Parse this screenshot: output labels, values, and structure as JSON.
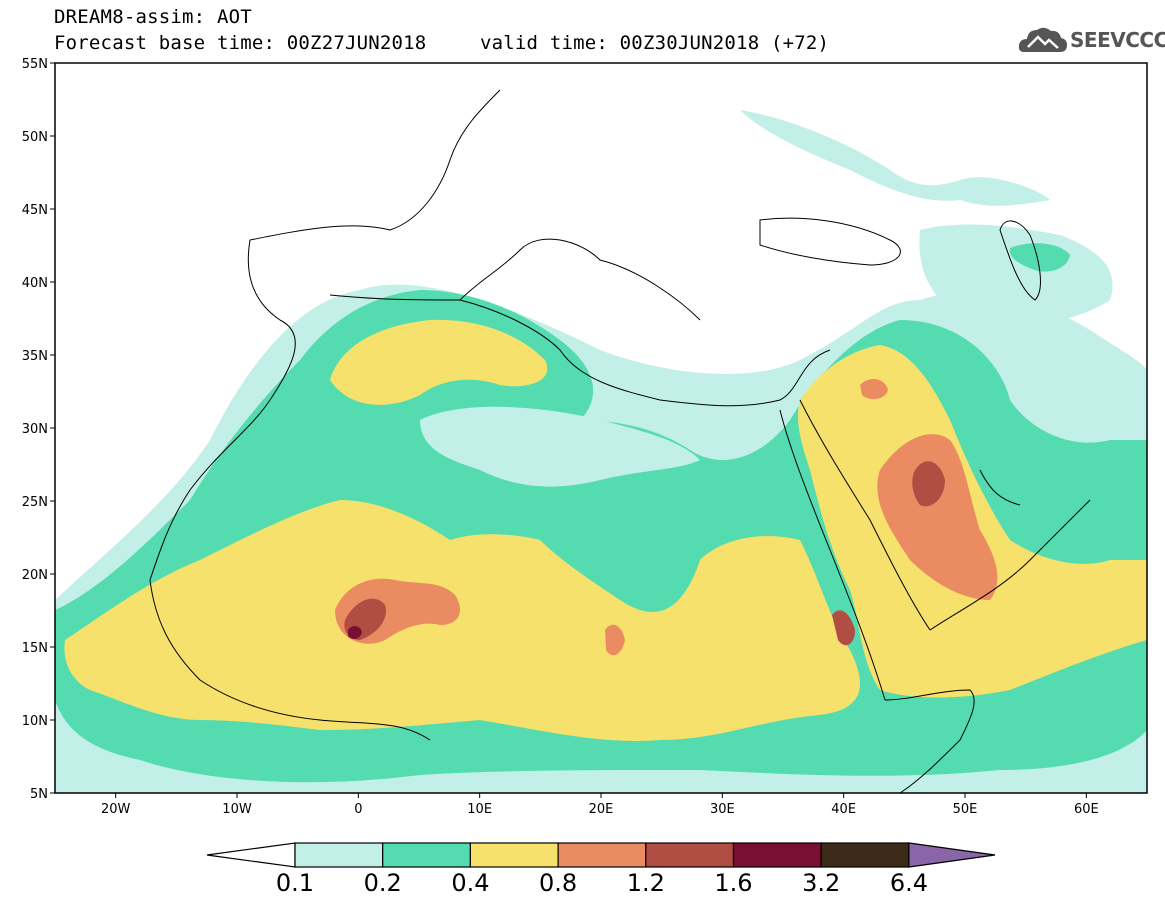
{
  "header": {
    "title": "DREAM8-assim: AOT",
    "base_time": "Forecast base time: 00Z27JUN2018",
    "valid_time": "valid time: 00Z30JUN2018 (+72)"
  },
  "logo": {
    "text": "SEEVCCC",
    "icon": "cloud-icon"
  },
  "map": {
    "lon_range": [
      -25,
      65
    ],
    "lat_range": [
      5,
      55
    ],
    "lat_ticks": [
      {
        "value": 55,
        "label": "55N"
      },
      {
        "value": 50,
        "label": "50N"
      },
      {
        "value": 45,
        "label": "45N"
      },
      {
        "value": 40,
        "label": "40N"
      },
      {
        "value": 35,
        "label": "35N"
      },
      {
        "value": 30,
        "label": "30N"
      },
      {
        "value": 25,
        "label": "25N"
      },
      {
        "value": 20,
        "label": "20N"
      },
      {
        "value": 15,
        "label": "15N"
      },
      {
        "value": 10,
        "label": "10N"
      },
      {
        "value": 5,
        "label": "5N"
      }
    ],
    "lon_ticks": [
      {
        "value": -20,
        "label": "20W"
      },
      {
        "value": -10,
        "label": "10W"
      },
      {
        "value": 0,
        "label": "0"
      },
      {
        "value": 10,
        "label": "10E"
      },
      {
        "value": 20,
        "label": "20E"
      },
      {
        "value": 30,
        "label": "30E"
      },
      {
        "value": 40,
        "label": "40E"
      },
      {
        "value": 50,
        "label": "50E"
      },
      {
        "value": 60,
        "label": "60E"
      }
    ]
  },
  "colorbar": {
    "levels": [
      "0.1",
      "0.2",
      "0.4",
      "0.8",
      "1.2",
      "1.6",
      "3.2",
      "6.4"
    ],
    "colors": [
      "#ffffff",
      "#c2efe8",
      "#54dcb0",
      "#f5e16c",
      "#ea8b62",
      "#b24d44",
      "#7a0f34",
      "#3e2a18",
      "#8a66a8"
    ]
  }
}
